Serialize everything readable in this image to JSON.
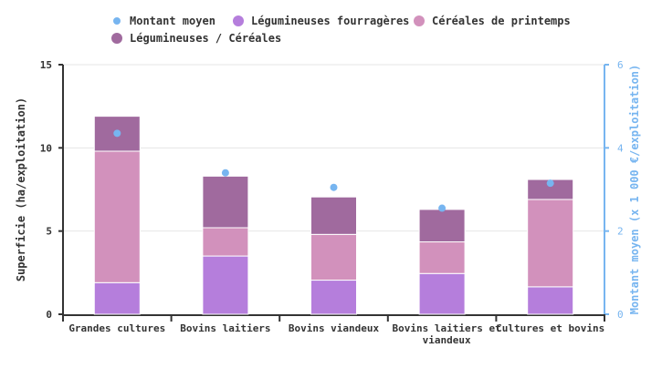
{
  "chart_data": {
    "type": "bar",
    "stacked": true,
    "categories": [
      "Grandes cultures",
      "Bovins laitiers",
      "Bovins viandeux",
      "Bovins laitiers et viandeux",
      "Cultures et bovins"
    ],
    "series": [
      {
        "name": "Légumineuses fourragères",
        "color": "#b57edc",
        "axis": "left",
        "values": [
          1.9,
          3.5,
          2.05,
          2.45,
          1.65
        ]
      },
      {
        "name": "Céréales de printemps",
        "color": "#d291bc",
        "axis": "left",
        "values": [
          7.9,
          1.7,
          2.75,
          1.9,
          5.25
        ]
      },
      {
        "name": "Légumineuses / Céréales",
        "color": "#a06a9e",
        "axis": "left",
        "values": [
          2.1,
          3.1,
          2.25,
          1.95,
          1.2
        ]
      },
      {
        "name": "Montant moyen",
        "type": "scatter",
        "color": "#77b5f0",
        "axis": "right",
        "values": [
          4.35,
          3.4,
          3.05,
          2.55,
          3.15
        ]
      }
    ],
    "legend_order": [
      "Montant moyen",
      "Légumineuses fourragères",
      "Céréales de printemps",
      "Légumineuses / Céréales"
    ],
    "ylabel": "Superficie (ha/exploitation)",
    "ylim": [
      0,
      15
    ],
    "yticks": [
      "0",
      "5",
      "10",
      "15"
    ],
    "y2label": "Montant moyen (x 1 000 €/exploitation)",
    "y2lim": [
      0,
      6
    ],
    "y2ticks": [
      "0",
      "2",
      "4",
      "6"
    ],
    "grid": true,
    "legend_placement": "top"
  }
}
